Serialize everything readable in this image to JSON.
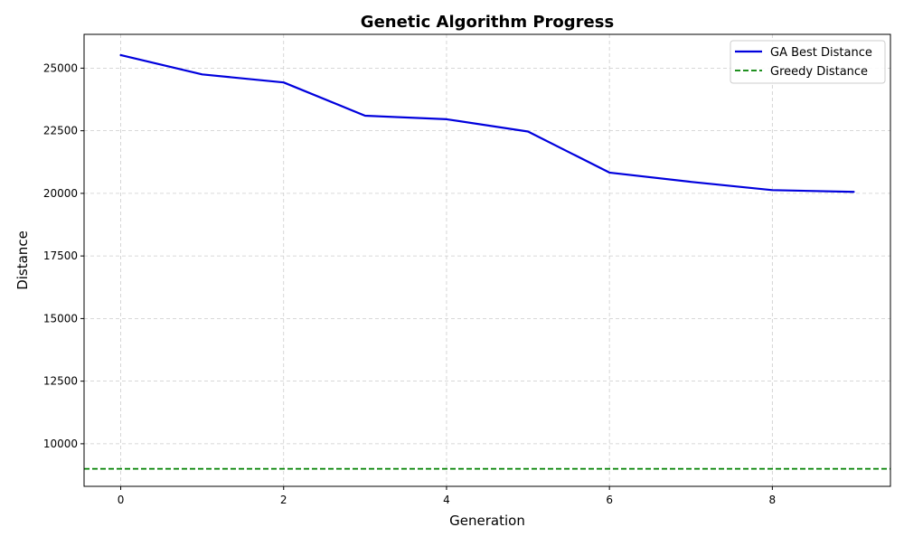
{
  "chart_data": {
    "type": "line",
    "title": "Genetic Algorithm Progress",
    "xlabel": "Generation",
    "ylabel": "Distance",
    "xlim": [
      -0.45,
      9.45
    ],
    "ylim": [
      8300,
      26350
    ],
    "x_ticks": [
      0,
      2,
      4,
      6,
      8
    ],
    "y_ticks": [
      10000,
      12500,
      15000,
      17500,
      20000,
      22500,
      25000
    ],
    "grid": true,
    "legend_position": "top-right",
    "series": [
      {
        "name": "GA Best Distance",
        "style": "solid",
        "color": "#0000dd",
        "x": [
          0,
          1,
          2,
          3,
          4,
          5,
          6,
          7,
          8,
          9
        ],
        "y": [
          25520,
          24750,
          24430,
          23100,
          22960,
          22470,
          20830,
          20460,
          20130,
          20060
        ]
      },
      {
        "name": "Greedy Distance",
        "style": "dashed",
        "color": "#008000",
        "constant": 9000
      }
    ]
  }
}
